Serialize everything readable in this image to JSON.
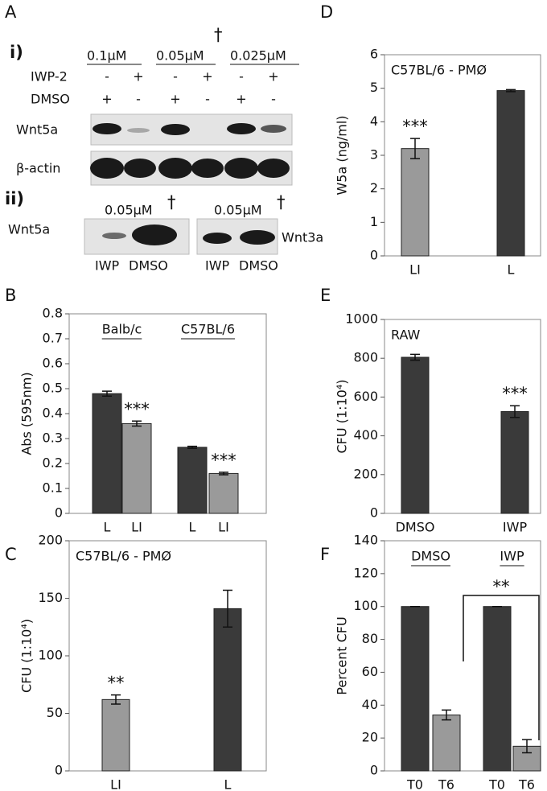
{
  "panel_a": {
    "letter": "A",
    "part_i": {
      "label": "i)",
      "concentrations": [
        "0.1µM",
        "0.05µM",
        "0.025µM"
      ],
      "dagger": "†",
      "rows": [
        {
          "label": "IWP-2",
          "signs": [
            "-",
            "+",
            "-",
            "+",
            "-",
            "+"
          ]
        },
        {
          "label": "DMSO",
          "signs": [
            "+",
            "-",
            "+",
            "-",
            "+",
            "-"
          ]
        }
      ],
      "blots": [
        "Wnt5a",
        "β-actin"
      ]
    },
    "part_ii": {
      "label": "ii)",
      "left": {
        "concentration": "0.05µM",
        "dagger": "†",
        "protein": "Wnt5a",
        "lanes": [
          "IWP",
          "DMSO"
        ]
      },
      "right": {
        "concentration": "0.05µM",
        "dagger": "†",
        "protein": "Wnt3a",
        "lanes": [
          "IWP",
          "DMSO"
        ]
      }
    }
  },
  "chart_data": [
    {
      "type": "bar",
      "panel": "B",
      "ylabel": "Abs (595nm)",
      "groups": [
        "Balb/c",
        "C57BL/6"
      ],
      "categories": [
        "L",
        "LI",
        "L",
        "LI"
      ],
      "values": [
        0.48,
        0.36,
        0.265,
        0.16
      ],
      "errors": [
        0.01,
        0.01,
        0.004,
        0.005
      ],
      "annotations": [
        null,
        "***",
        null,
        "***"
      ],
      "colors": [
        "#3a3a3a",
        "#9a9a9a",
        "#3a3a3a",
        "#9a9a9a"
      ],
      "ylim": [
        0,
        0.8
      ],
      "yticks": [
        0,
        0.1,
        0.2,
        0.3,
        0.4,
        0.5,
        0.6,
        0.7,
        0.8
      ]
    },
    {
      "type": "bar",
      "panel": "C",
      "title": "C57BL/6 - PMØ",
      "ylabel": "CFU (1:10⁴)",
      "categories": [
        "LI",
        "L"
      ],
      "values": [
        62,
        141
      ],
      "errors": [
        4,
        16
      ],
      "annotations": [
        "**",
        null
      ],
      "colors": [
        "#9a9a9a",
        "#3a3a3a"
      ],
      "ylim": [
        0,
        200
      ],
      "yticks": [
        0,
        50,
        100,
        150,
        200
      ]
    },
    {
      "type": "bar",
      "panel": "D",
      "title": "C57BL/6 - PMØ",
      "ylabel": "W5a (ng/ml)",
      "categories": [
        "LI",
        "L"
      ],
      "values": [
        3.2,
        4.93
      ],
      "errors": [
        0.3,
        0.03
      ],
      "annotations": [
        "***",
        null
      ],
      "colors": [
        "#9a9a9a",
        "#3a3a3a"
      ],
      "ylim": [
        0,
        6
      ],
      "yticks": [
        0,
        1,
        2,
        3,
        4,
        5,
        6
      ]
    },
    {
      "type": "bar",
      "panel": "E",
      "title": "RAW",
      "ylabel": "CFU (1:10⁴)",
      "categories": [
        "DMSO",
        "IWP"
      ],
      "values": [
        805,
        525
      ],
      "errors": [
        15,
        30
      ],
      "annotations": [
        null,
        "***"
      ],
      "colors": [
        "#3a3a3a",
        "#3a3a3a"
      ],
      "ylim": [
        0,
        1000
      ],
      "yticks": [
        0,
        200,
        400,
        600,
        800,
        1000
      ]
    },
    {
      "type": "bar",
      "panel": "F",
      "ylabel": "Percent CFU",
      "groups": [
        "DMSO",
        "IWP"
      ],
      "bracket_annotation": "**",
      "categories": [
        "T0",
        "T6",
        "T0",
        "T6"
      ],
      "values": [
        100,
        34,
        100,
        15
      ],
      "errors": [
        0,
        3,
        0,
        4
      ],
      "colors": [
        "#3a3a3a",
        "#9a9a9a",
        "#3a3a3a",
        "#9a9a9a"
      ],
      "ylim": [
        0,
        140
      ],
      "yticks": [
        0,
        20,
        40,
        60,
        80,
        100,
        120,
        140
      ]
    }
  ]
}
